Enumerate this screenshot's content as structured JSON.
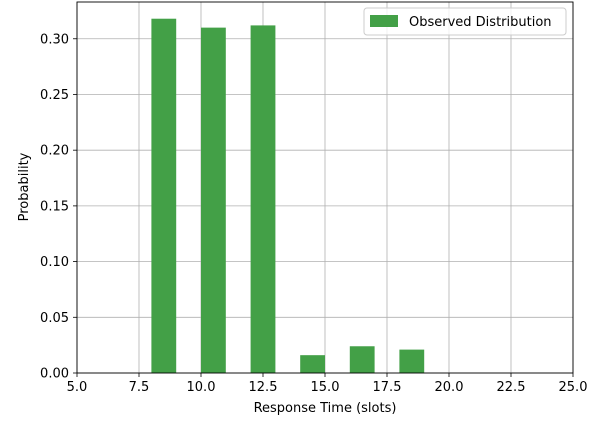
{
  "chart_data": {
    "type": "bar",
    "title": "",
    "xlabel": "Response Time (slots)",
    "ylabel": "Probability",
    "xlim": [
      5.0,
      25.0
    ],
    "ylim": [
      0.0,
      0.333
    ],
    "xticks": [
      "5.0",
      "7.5",
      "10.0",
      "12.5",
      "15.0",
      "17.5",
      "20.0",
      "22.5",
      "25.0"
    ],
    "xtick_values": [
      5.0,
      7.5,
      10.0,
      12.5,
      15.0,
      17.5,
      20.0,
      22.5,
      25.0
    ],
    "yticks": [
      "0.00",
      "0.05",
      "0.10",
      "0.15",
      "0.20",
      "0.25",
      "0.30"
    ],
    "ytick_values": [
      0.0,
      0.05,
      0.1,
      0.15,
      0.2,
      0.25,
      0.3
    ],
    "grid": true,
    "legend_position": "top-right",
    "series": [
      {
        "name": "Observed Distribution",
        "color": "#43a047",
        "bins": [
          {
            "x0": 8.0,
            "x1": 9.0,
            "value": 0.318
          },
          {
            "x0": 10.0,
            "x1": 11.0,
            "value": 0.31
          },
          {
            "x0": 12.0,
            "x1": 13.0,
            "value": 0.312
          },
          {
            "x0": 14.0,
            "x1": 15.0,
            "value": 0.016
          },
          {
            "x0": 16.0,
            "x1": 17.0,
            "value": 0.024
          },
          {
            "x0": 18.0,
            "x1": 19.0,
            "value": 0.021
          }
        ]
      }
    ]
  }
}
